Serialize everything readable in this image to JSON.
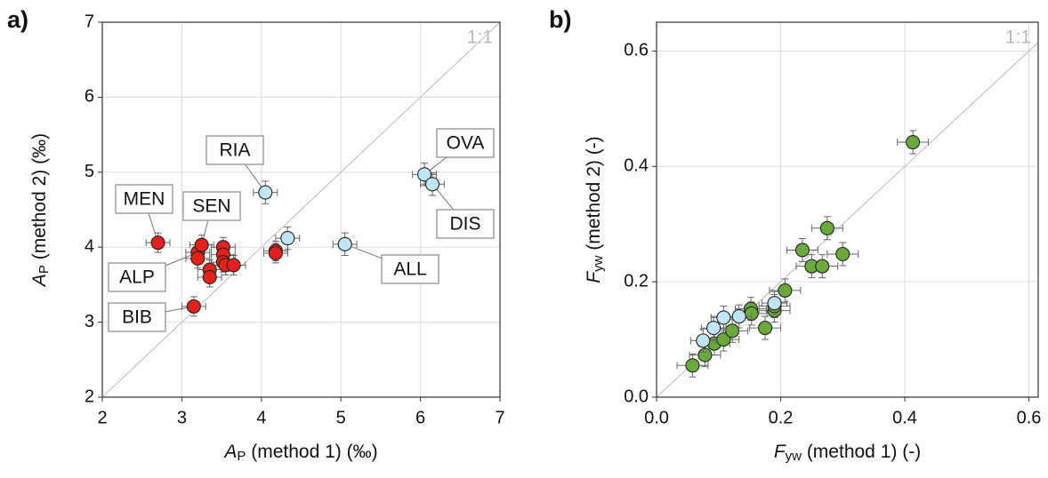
{
  "chart_data": [
    {
      "type": "scatter",
      "panel_label": "a)",
      "x_label": {
        "symbol": "A",
        "sub": "P",
        "rest": " (method 1) (‰)"
      },
      "y_label": {
        "symbol": "A",
        "sub": "P",
        "rest": " (method 2) (‰)"
      },
      "reference_label": "1:1",
      "xlim": [
        2,
        7
      ],
      "ylim": [
        2,
        7
      ],
      "xticks": [
        2,
        3,
        4,
        5,
        6,
        7
      ],
      "yticks": [
        2,
        3,
        4,
        5,
        6,
        7
      ],
      "grid": true,
      "series": [
        {
          "color": "#e3201b",
          "xerr": 0.15,
          "yerr": 0.13,
          "x": [
            2.7,
            3.15,
            3.2,
            3.2,
            3.25,
            3.35,
            3.35,
            3.52,
            3.52,
            3.52,
            3.55,
            3.65,
            4.18,
            4.18
          ],
          "values": [
            4.06,
            3.21,
            3.93,
            3.85,
            4.03,
            3.7,
            3.6,
            4.0,
            3.9,
            3.8,
            3.76,
            3.76,
            3.95,
            3.92
          ]
        },
        {
          "color": "#bfe6f7",
          "xerr": 0.15,
          "yerr": 0.15,
          "x": [
            4.05,
            4.33,
            5.05,
            6.05,
            6.15
          ],
          "values": [
            4.73,
            4.12,
            4.04,
            4.97,
            4.84
          ]
        }
      ],
      "annotations": [
        "MEN",
        "SEN",
        "RIA",
        "OVA",
        "DIS",
        "ALL",
        "ALP",
        "BIB"
      ]
    },
    {
      "type": "scatter",
      "panel_label": "b)",
      "x_label": {
        "symbol": "F",
        "sub": "yw",
        "rest": " (method 1) (-)"
      },
      "y_label": {
        "symbol": "F",
        "sub": "yw",
        "rest": " (method 2) (-)"
      },
      "reference_label": "1:1",
      "xlim": [
        0,
        0.615
      ],
      "ylim": [
        0,
        0.65
      ],
      "xticks": [
        {
          "value": 0,
          "label": "0.0"
        },
        0.2,
        0.4,
        0.6
      ],
      "yticks": [
        {
          "value": 0,
          "label": "0.0"
        },
        0.2,
        0.4,
        0.6
      ],
      "grid": true,
      "series": [
        {
          "color": "#6aaa3a",
          "xerr": 0.025,
          "yerr": 0.02,
          "x": [
            0.058,
            0.078,
            0.093,
            0.108,
            0.122,
            0.152,
            0.153,
            0.175,
            0.19,
            0.19,
            0.207,
            0.235,
            0.25,
            0.267,
            0.275,
            0.3,
            0.413
          ],
          "values": [
            0.055,
            0.073,
            0.093,
            0.1,
            0.115,
            0.153,
            0.145,
            0.12,
            0.15,
            0.158,
            0.185,
            0.255,
            0.227,
            0.227,
            0.293,
            0.248,
            0.442
          ]
        },
        {
          "color": "#bfe6f7",
          "xerr": 0.02,
          "yerr": 0.02,
          "x": [
            0.075,
            0.092,
            0.108,
            0.133,
            0.19
          ],
          "values": [
            0.098,
            0.12,
            0.138,
            0.14,
            0.163
          ]
        }
      ]
    }
  ]
}
